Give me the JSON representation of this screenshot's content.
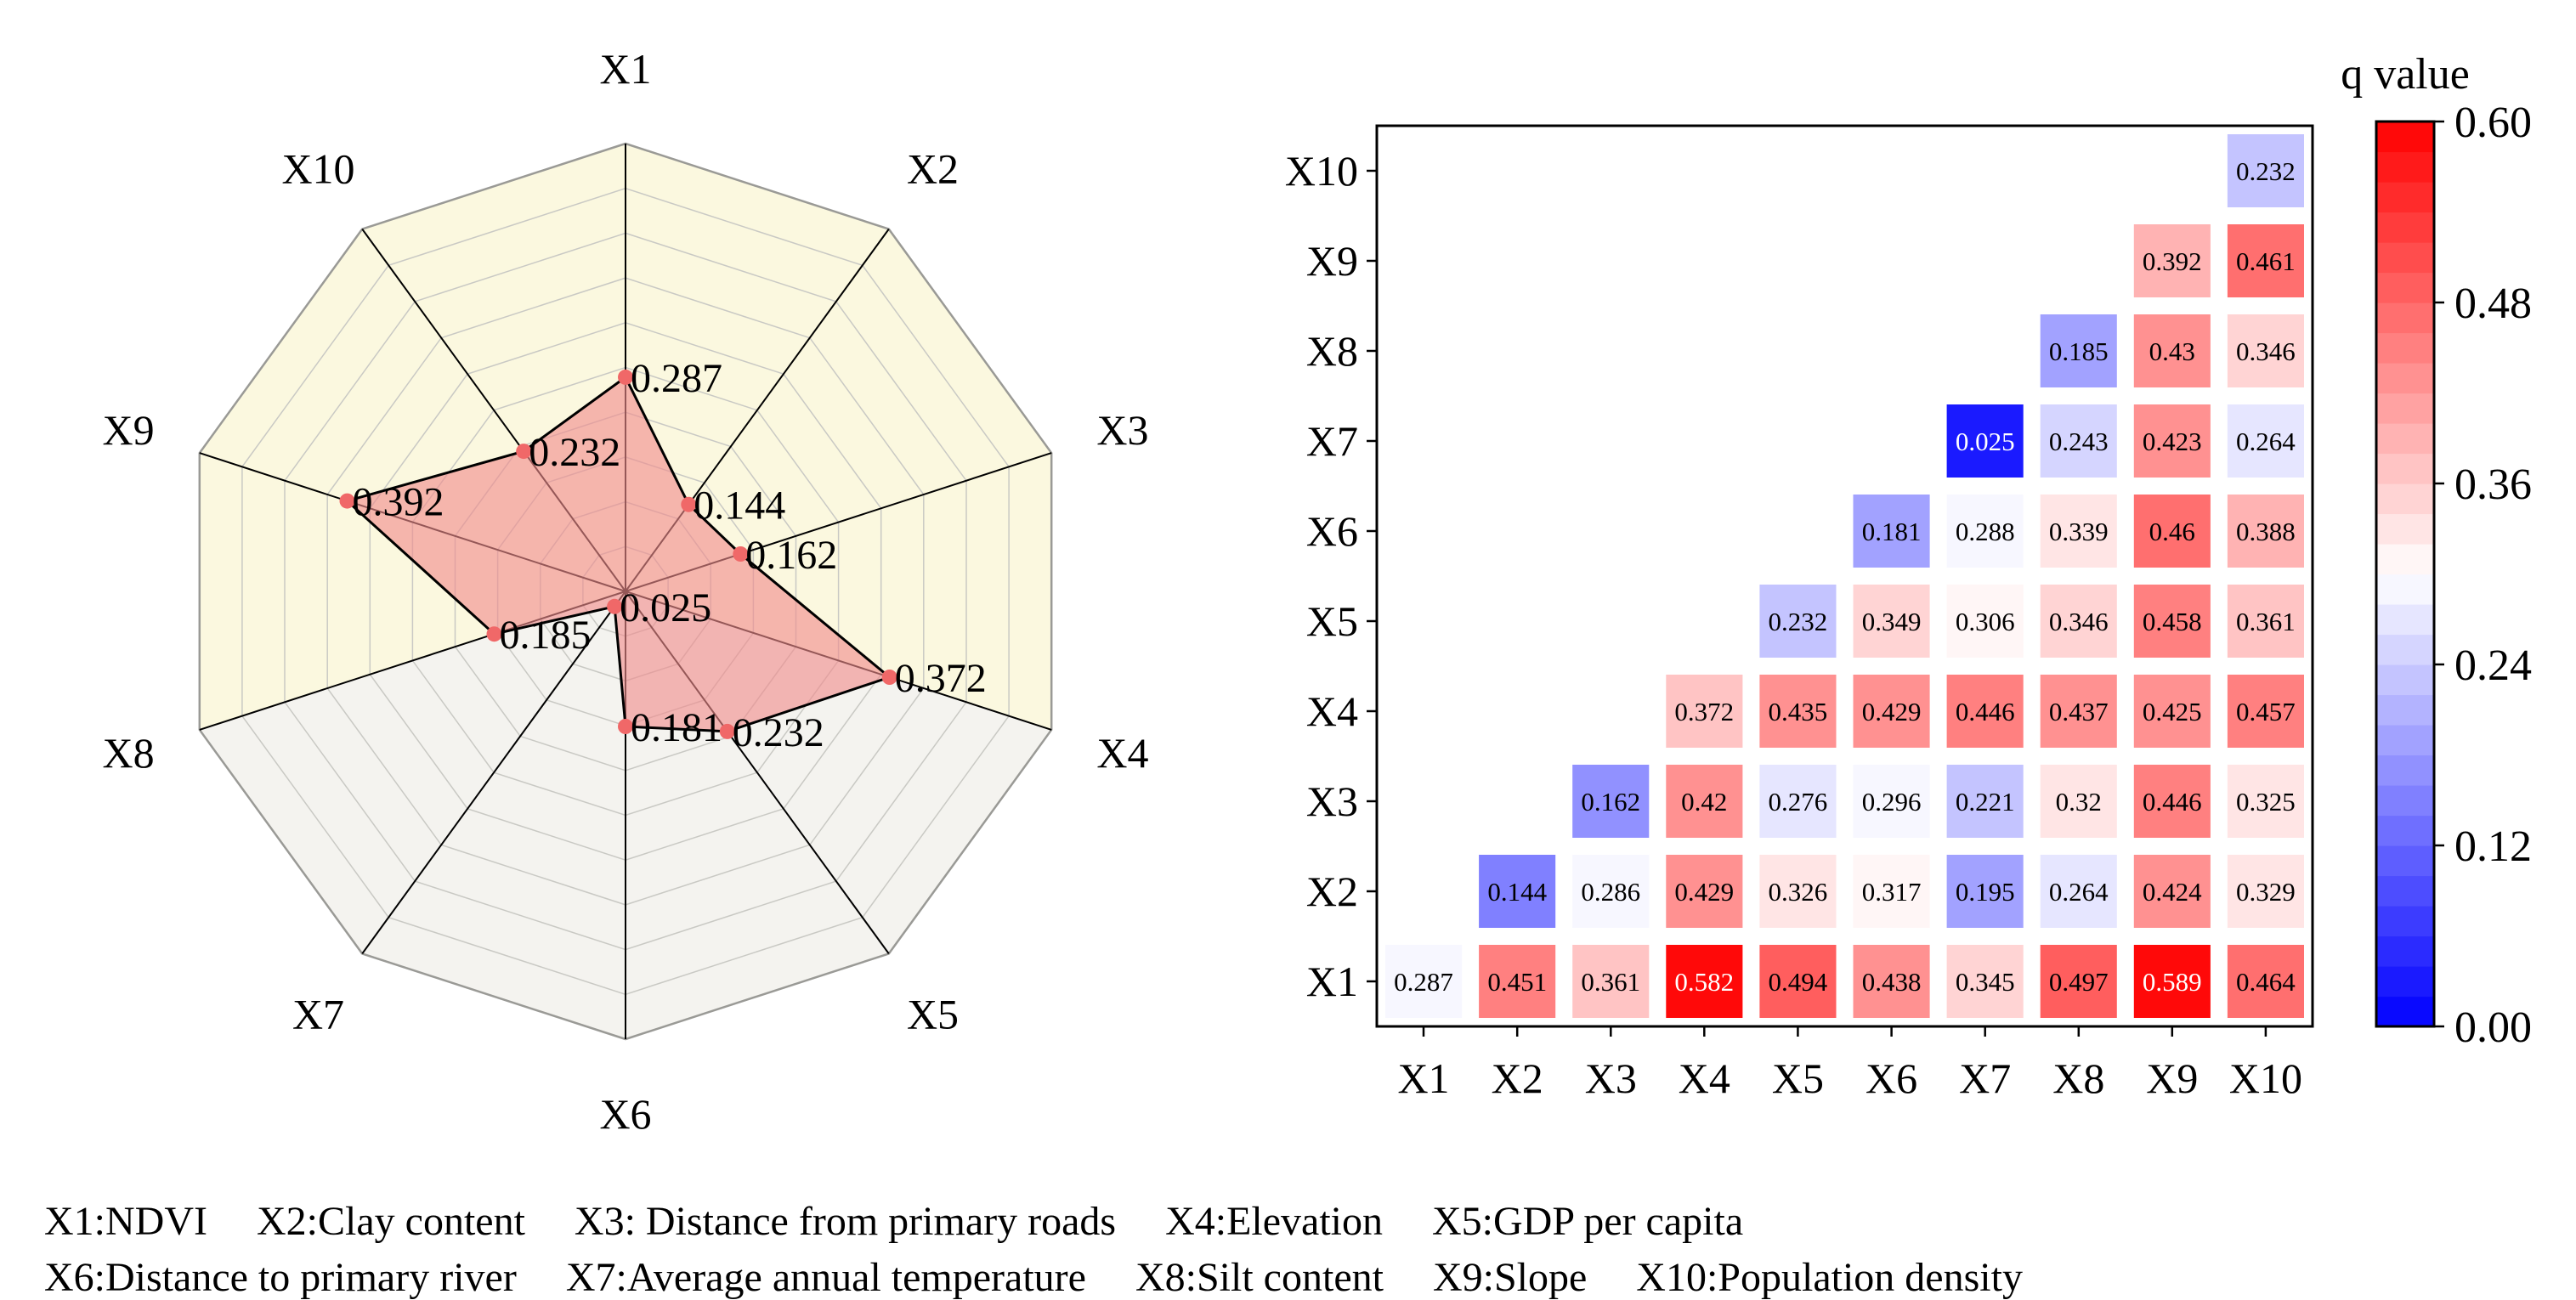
{
  "chart_data": [
    {
      "type": "radar",
      "axes": [
        "X1",
        "X2",
        "X3",
        "X4",
        "X5",
        "X6",
        "X7",
        "X8",
        "X9",
        "X10"
      ],
      "values": [
        0.287,
        0.144,
        0.162,
        0.372,
        0.232,
        0.181,
        0.025,
        0.185,
        0.392,
        0.232
      ],
      "value_labels": [
        "0.287",
        "0.144",
        "0.162",
        "0.372",
        "0.232",
        "0.181",
        "0.025",
        "0.185",
        "0.392",
        "0.232"
      ],
      "rmax": 0.6,
      "grid_rings": 10,
      "colors": {
        "fill": "#f08c8c",
        "line": "#000000",
        "marker": "#f06868",
        "bg_upper": "#fbf8df",
        "bg_lower": "#f4f3ef",
        "grid": "#c9c9c4"
      }
    },
    {
      "type": "heatmap",
      "x_categories": [
        "X1",
        "X2",
        "X3",
        "X4",
        "X5",
        "X6",
        "X7",
        "X8",
        "X9",
        "X10"
      ],
      "y_categories": [
        "X1",
        "X2",
        "X3",
        "X4",
        "X5",
        "X6",
        "X7",
        "X8",
        "X9",
        "X10"
      ],
      "rows": [
        {
          "y": "X1",
          "labels": [
            "0.287",
            "0.451",
            "0.361",
            "0.582",
            "0.494",
            "0.438",
            "0.345",
            "0.497",
            "0.589",
            "0.464"
          ]
        },
        {
          "y": "X2",
          "labels": [
            "",
            "0.144",
            "0.286",
            "0.429",
            "0.326",
            "0.317",
            "0.195",
            "0.264",
            "0.424",
            "0.329"
          ]
        },
        {
          "y": "X3",
          "labels": [
            "",
            "",
            "0.162",
            "0.42",
            "0.276",
            "0.296",
            "0.221",
            "0.32",
            "0.446",
            "0.325"
          ]
        },
        {
          "y": "X4",
          "labels": [
            "",
            "",
            "",
            "0.372",
            "0.435",
            "0.429",
            "0.446",
            "0.437",
            "0.425",
            "0.457"
          ]
        },
        {
          "y": "X5",
          "labels": [
            "",
            "",
            "",
            "",
            "0.232",
            "0.349",
            "0.306",
            "0.346",
            "0.458",
            "0.361"
          ]
        },
        {
          "y": "X6",
          "labels": [
            "",
            "",
            "",
            "",
            "",
            "0.181",
            "0.288",
            "0.339",
            "0.46",
            "0.388"
          ]
        },
        {
          "y": "X7",
          "labels": [
            "",
            "",
            "",
            "",
            "",
            "",
            "0.025",
            "0.243",
            "0.423",
            "0.264"
          ]
        },
        {
          "y": "X8",
          "labels": [
            "",
            "",
            "",
            "",
            "",
            "",
            "",
            "0.185",
            "0.43",
            "0.346"
          ]
        },
        {
          "y": "X9",
          "labels": [
            "",
            "",
            "",
            "",
            "",
            "",
            "",
            "",
            "0.392",
            "0.461"
          ]
        },
        {
          "y": "X10",
          "labels": [
            "",
            "",
            "",
            "",
            "",
            "",
            "",
            "",
            "",
            "0.232"
          ]
        }
      ],
      "colorbar": {
        "title": "q value",
        "range": [
          0.0,
          0.6
        ],
        "ticks": [
          "0.00",
          "0.12",
          "0.24",
          "0.36",
          "0.48",
          "0.60"
        ],
        "levels": 30,
        "low_color": "#0000ff",
        "mid_color": "#ffffff",
        "high_color": "#ff0000"
      }
    }
  ],
  "legend": {
    "line1": [
      "X1:NDVI",
      "X2:Clay content",
      "X3: Distance from primary roads",
      "X4:Elevation",
      "X5:GDP per capita"
    ],
    "line2": [
      "X6:Distance to primary river",
      "X7:Average annual temperature",
      "X8:Silt content",
      "X9:Slope",
      "X10:Population density"
    ]
  }
}
